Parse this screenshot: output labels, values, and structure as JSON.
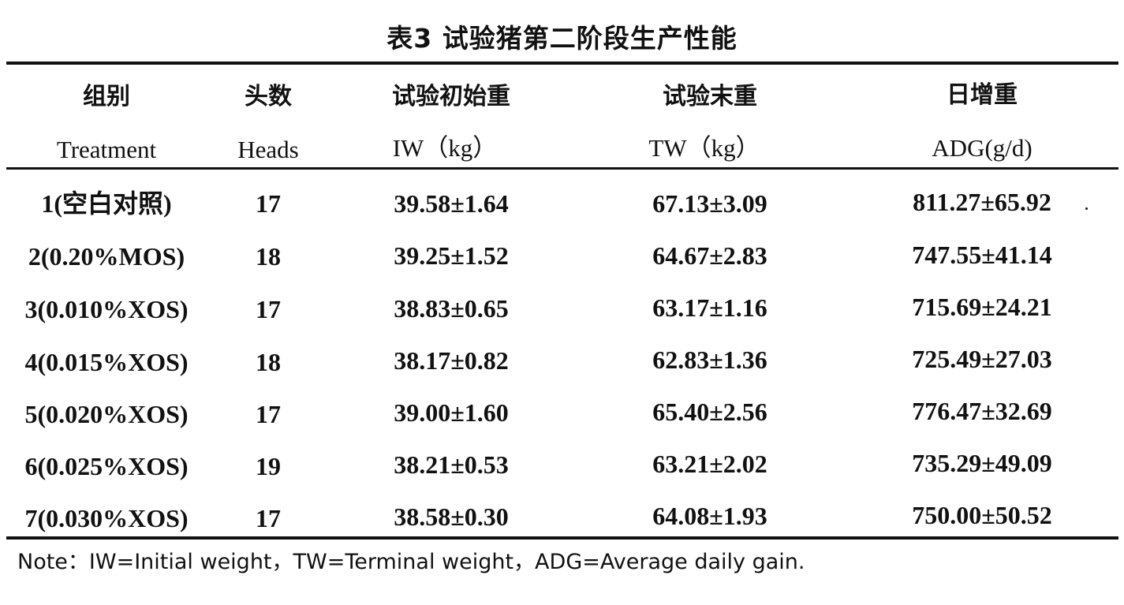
{
  "title": "表3 试验猪第二阶段生产性能",
  "headers_cn": [
    "组别",
    "头数",
    "试验初始重",
    "试验末重",
    "日增重"
  ],
  "headers_en": [
    "Treatment",
    "Heads",
    "IW（kg）",
    "TW（kg）",
    "ADG(g/d)"
  ],
  "rows": [
    [
      "1(空白对照)",
      "17",
      "39.58±1.64",
      "67.13±3.09",
      "811.27±65.92"
    ],
    [
      "2(0.20%MOS)",
      "18",
      "39.25±1.52",
      "64.67±2.83",
      "747.55±41.14"
    ],
    [
      "3(0.010%XOS)",
      "17",
      "38.83±0.65",
      "63.17±1.16",
      "715.69±24.21"
    ],
    [
      "4(0.015%XOS)",
      "18",
      "38.17±0.82",
      "62.83±1.36",
      "725.49±27.03"
    ],
    [
      "5(0.020%XOS)",
      "17",
      "39.00±1.60",
      "65.40±2.56",
      "776.47±32.69"
    ],
    [
      "6(0.025%XOS)",
      "19",
      "38.21±0.53",
      "63.21±2.02",
      "735.29±49.09"
    ],
    [
      "7(0.030%XOS)",
      "17",
      "38.58±0.30",
      "64.08±1.93",
      "750.00±50.52"
    ]
  ],
  "note": "Note：IW=Initial weight，TW=Terminal weight，ADG=Average daily gain."
}
